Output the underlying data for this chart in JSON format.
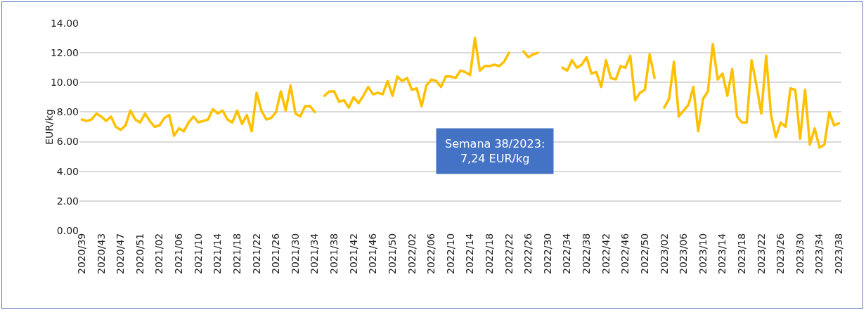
{
  "chart_data": {
    "type": "line",
    "ylabel": "EUR/kg",
    "categories": [
      "2020/39",
      null,
      null,
      null,
      "2020/43",
      null,
      null,
      null,
      "2020/47",
      null,
      null,
      null,
      "2020/51",
      null,
      null,
      null,
      "2021/02",
      null,
      null,
      null,
      "2021/06",
      null,
      null,
      null,
      "2021/10",
      null,
      null,
      null,
      "2021/14",
      null,
      null,
      null,
      "2021/18",
      null,
      null,
      null,
      "2021/22",
      null,
      null,
      null,
      "2021/26",
      null,
      null,
      null,
      "2021/30",
      null,
      null,
      null,
      "2021/34",
      null,
      null,
      null,
      "2021/38",
      null,
      null,
      null,
      "2021/42",
      null,
      null,
      null,
      "2021/46",
      null,
      null,
      null,
      "2021/50",
      null,
      null,
      null,
      "2022/02",
      null,
      null,
      null,
      "2022/06",
      null,
      null,
      null,
      "2022/10",
      null,
      null,
      null,
      "2022/14",
      null,
      null,
      null,
      "2022/18",
      null,
      null,
      null,
      "2022/22",
      null,
      null,
      null,
      "2022/26",
      null,
      null,
      null,
      "2022/30",
      null,
      null,
      null,
      "2022/34",
      null,
      null,
      null,
      "2022/38",
      null,
      null,
      null,
      "2022/42",
      null,
      null,
      null,
      "2022/46",
      null,
      null,
      null,
      "2022/50",
      null,
      null,
      null,
      "2023/02",
      null,
      null,
      null,
      "2023/06",
      null,
      null,
      null,
      "2023/10",
      null,
      null,
      null,
      "2023/14",
      null,
      null,
      null,
      "2023/18",
      null,
      null,
      null,
      "2023/22",
      null,
      null,
      null,
      "2023/26",
      null,
      null,
      null,
      "2023/30",
      null,
      null,
      null,
      "2023/34",
      null,
      null,
      null,
      "2023/38"
    ],
    "series": [
      {
        "color": "#ffc000",
        "values": [
          7.5,
          7.4,
          7.5,
          7.9,
          7.7,
          7.4,
          7.7,
          7.0,
          6.8,
          7.1,
          8.1,
          7.5,
          7.3,
          7.9,
          7.4,
          7.0,
          7.1,
          7.6,
          7.8,
          6.4,
          6.9,
          6.7,
          7.3,
          7.7,
          7.3,
          7.4,
          7.5,
          8.2,
          7.9,
          8.1,
          7.5,
          7.3,
          8.1,
          7.2,
          7.8,
          6.7,
          9.3,
          8.1,
          7.5,
          7.6,
          8.0,
          9.4,
          8.1,
          9.8,
          7.9,
          7.7,
          8.4,
          8.4,
          8.0,
          null,
          9.1,
          9.4,
          9.4,
          8.7,
          8.8,
          8.3,
          9.0,
          8.6,
          9.1,
          9.7,
          9.2,
          9.3,
          9.2,
          10.1,
          9.1,
          10.4,
          10.1,
          10.3,
          9.5,
          9.6,
          8.4,
          9.8,
          10.2,
          10.1,
          9.7,
          10.4,
          10.4,
          10.3,
          10.8,
          10.7,
          10.5,
          13.0,
          10.8,
          11.1,
          11.1,
          11.2,
          11.1,
          11.4,
          12.0,
          null,
          null,
          12.1,
          11.7,
          11.9,
          12.0,
          null,
          null,
          null,
          null,
          11.0,
          10.8,
          11.5,
          11.0,
          11.2,
          11.7,
          10.6,
          10.7,
          9.7,
          11.5,
          10.3,
          10.2,
          11.1,
          11.0,
          11.8,
          8.8,
          9.3,
          9.5,
          11.9,
          10.3,
          null,
          8.3,
          8.9,
          11.4,
          7.7,
          8.1,
          8.5,
          9.7,
          6.7,
          8.9,
          9.4,
          12.6,
          10.2,
          10.6,
          9.1,
          10.9,
          7.7,
          7.3,
          7.3,
          11.5,
          9.8,
          7.9,
          11.8,
          7.8,
          6.3,
          7.3,
          7.0,
          9.6,
          9.5,
          6.2,
          9.5,
          5.8,
          6.9,
          5.6,
          5.8,
          8.0,
          7.1,
          7.24
        ]
      }
    ],
    "ylim": [
      0,
      14
    ],
    "yticks": [
      {
        "value": 0,
        "label": "0.00"
      },
      {
        "value": 2,
        "label": "2.00"
      },
      {
        "value": 4,
        "label": "4.00"
      },
      {
        "value": 6,
        "label": "6.00"
      },
      {
        "value": 8,
        "label": "8.00"
      },
      {
        "value": 10,
        "label": "10.00"
      },
      {
        "value": 12,
        "label": "12.00"
      },
      {
        "value": 14,
        "label": "14.00"
      }
    ],
    "grid": "y",
    "marker": "none",
    "line_style": "solid",
    "annotations": [
      "Semana 38/2023:\n7,24 EUR/kg"
    ]
  }
}
